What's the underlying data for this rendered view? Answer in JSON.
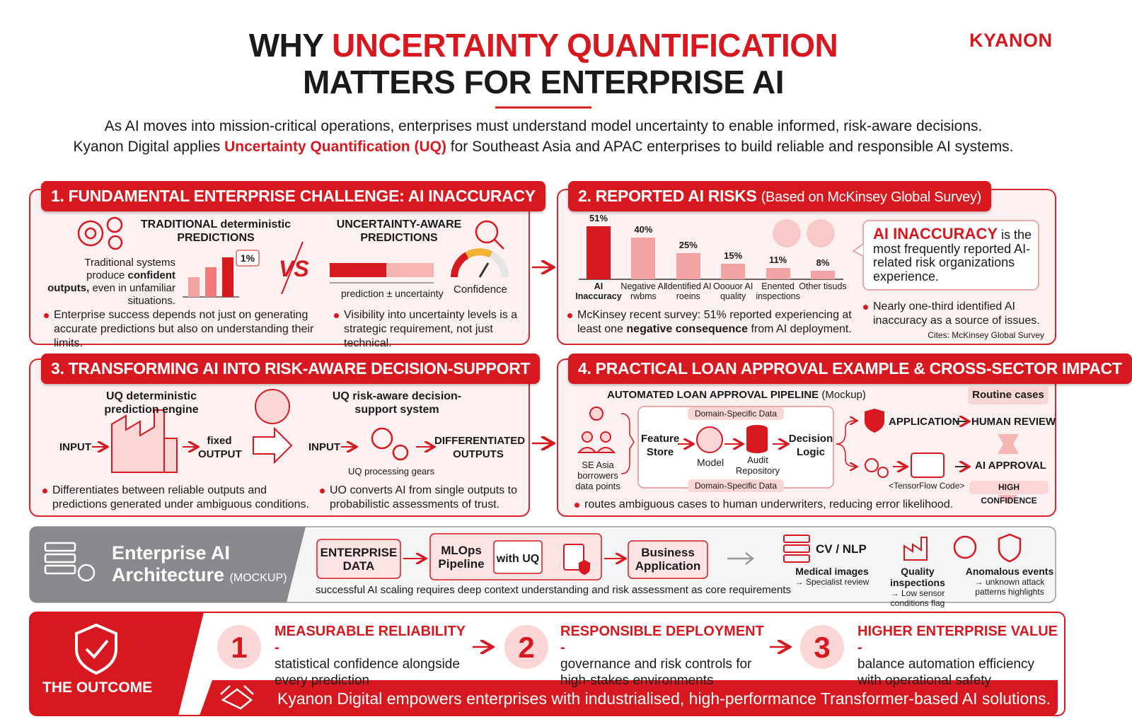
{
  "header": {
    "title_lead": "WHY",
    "title_highlight": "UNCERTAINTY QUANTIFICATION",
    "title_line2": "MATTERS FOR ENTERPRISE AI",
    "logo": "KYANON",
    "intro_line1": "As AI moves into mission-critical operations, enterprises must understand model uncertainty to enable informed, risk-aware decisions.",
    "intro_line2_lead": "Kyanon Digital applies",
    "intro_line2_highlight": "Uncertainty Quantification (UQ)",
    "intro_line2_tail": "for Southeast Asia and APAC enterprises to build reliable and responsible AI systems."
  },
  "section1": {
    "title": "1. FUNDAMENTAL ENTERPRISE CHALLENGE: AI INACCURACY",
    "traditional_label": "TRADITIONAL deterministic PREDICTIONS",
    "traditional_text_lead": "Traditional systems produce",
    "traditional_text_bold": "confident outputs,",
    "traditional_text_tail": "even in unfamiliar situations.",
    "badge": "1%",
    "versus": "VS",
    "uq_label": "UNCERTAINTY-AWARE PREDICTIONS",
    "bar_caption": "prediction ± uncertainty",
    "gauge_caption": "Confidence",
    "bullets": [
      "Enterprise success depends not just on generating accurate predictions but also on understanding their limits.",
      "Visibility into uncertainty levels is a strategic requirement, not just technical."
    ]
  },
  "section2": {
    "title": "2. REPORTED AI RISKS",
    "title_note": "(Based on McKinsey Global Survey)",
    "chart": {
      "type": "bar",
      "categories": [
        "AI Inaccuracy",
        "Negative AI rwbms",
        "Identified AI roeins",
        "Ooouor AI quality",
        "Enented inspections",
        "Other tisuds"
      ],
      "values": [
        51,
        40,
        25,
        15,
        11,
        8
      ],
      "value_labels": [
        "51%",
        "40%",
        "25%",
        "15%",
        "11%",
        "8%"
      ],
      "colors": [
        "#d7191f",
        "#f2a3a3",
        "#f2a3a3",
        "#f2a3a3",
        "#f2a3a3",
        "#f2a3a3"
      ]
    },
    "callout_bold": "AI INACCURACY",
    "callout_text": "is the most frequently reported AI-related risk organizations experience.",
    "bullet1_lead": "McKinsey recent survey: 51% reported experiencing at least one",
    "bullet1_bold": "negative consequence",
    "bullet1_tail": "from AI deployment.",
    "bullet2": "Nearly one-third identified AI inaccuracy as a source of issues.",
    "citation": "Cites: McKinsey Global Survey"
  },
  "section3": {
    "title": "3. TRANSFORMING AI INTO RISK-AWARE DECISION-SUPPORT",
    "left_label": "UQ deterministic prediction engine",
    "left_input": "INPUT",
    "left_output": "fixed OUTPUT",
    "right_label": "UQ risk-aware decision-support system",
    "right_input": "INPUT",
    "right_output": "DIFFERENTIATED OUTPUTS",
    "gears_caption": "UQ processing gears",
    "bullets": [
      "Differentiates between reliable outputs and predictions generated under ambiguous conditions.",
      "UO converts AI from single outputs to probabilistic assessments of trust."
    ]
  },
  "section4": {
    "title": "4. PRACTICAL LOAN APPROVAL EXAMPLE & CROSS-SECTOR IMPACT",
    "pipeline_label": "AUTOMATED LOAN APPROVAL PIPELINE",
    "pipeline_note": "(Mockup)",
    "borrowers": "SE Asia borrowers data points",
    "feature_store": "Feature Store",
    "domain_top": "Domain-Specific Data",
    "domain_bottom": "Domain-Specific Data",
    "model": "Model",
    "audit": "Audit Repository",
    "decision": "Decision Logic",
    "routine": "Routine cases",
    "application": "APPLICATION",
    "human_review": "HUMAN REVIEW",
    "ai_approval": "AI APPROVAL",
    "code": "<TensorFlow Code>",
    "high_confidence": "HIGH CONFIDENCE",
    "bullet": "routes ambiguous cases to human underwriters, reducing error likelihood."
  },
  "architecture": {
    "title_line1": "Enterprise AI",
    "title_line2": "Architecture",
    "title_note": "(MOCKUP)",
    "enterprise_data": "ENTERPRISE DATA",
    "mlops": "MLOps Pipeline",
    "with_uq": "with UQ",
    "business": "Business Application",
    "caption": "successful AI scaling requires deep context understanding and risk assessment as core requirements",
    "cv_nlp": "CV / NLP",
    "uses": [
      {
        "title": "Medical images",
        "note": "→ Specialist review"
      },
      {
        "title": "Quality inspections",
        "note": "→ Low sensor conditions flag"
      },
      {
        "title": "Anomalous events",
        "note": "→ unknown attack patterns highlights"
      }
    ]
  },
  "outcome": {
    "label": "THE OUTCOME",
    "items": [
      {
        "number": "1",
        "title": "MEASURABLE RELIABILITY -",
        "text": "statistical confidence alongside every prediction"
      },
      {
        "number": "2",
        "title": "RESPONSIBLE DEPLOYMENT -",
        "text": "governance and risk controls for high-stakes environments"
      },
      {
        "number": "3",
        "title": "HIGHER ENTERPRISE VALUE -",
        "text": "balance automation efficiency with operational safety"
      }
    ],
    "footer": "Kyanon Digital empowers enterprises with industrialised, high-performance Transformer-based AI solutions."
  }
}
